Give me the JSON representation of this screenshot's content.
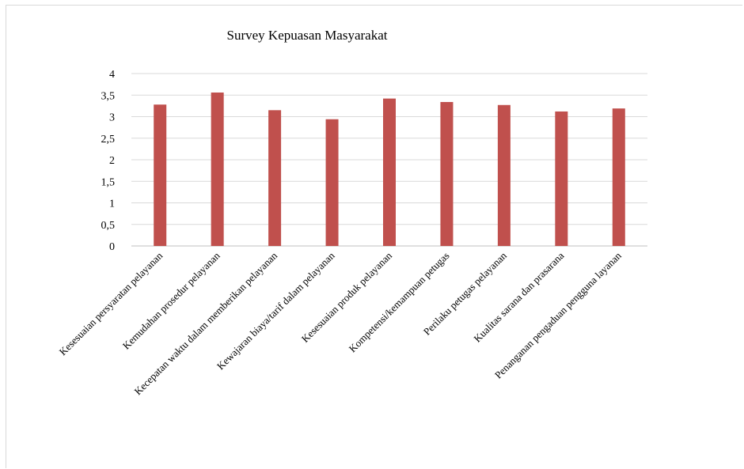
{
  "chart_data": {
    "type": "bar",
    "title": "Survey Kepuasan Masyarakat",
    "xlabel": "",
    "ylabel": "",
    "ylim": [
      0,
      4
    ],
    "yticks": [
      "0",
      "0,5",
      "1",
      "1,5",
      "2",
      "2,5",
      "3",
      "3,5",
      "4"
    ],
    "grid": true,
    "legend": "none",
    "bar_color": "#c0504d",
    "categories": [
      "Kesesuaian persyaratan pelayanan",
      "Kemudahan prosedur pelayanan",
      "Kecepatan waktu dalam memberikan pelayanan",
      "Kewajaran biaya/tarif dalam pelayanan",
      "Kesesuaian produk pelayanan",
      "Kompetensi/kemampuan petugas",
      "Perilaku petugas pelayanan",
      "Kualitas sarana dan prasarana",
      "Penanganan pengaduan pengguna layanan"
    ],
    "values": [
      3.28,
      3.56,
      3.15,
      2.94,
      3.42,
      3.34,
      3.27,
      3.12,
      3.19
    ]
  }
}
